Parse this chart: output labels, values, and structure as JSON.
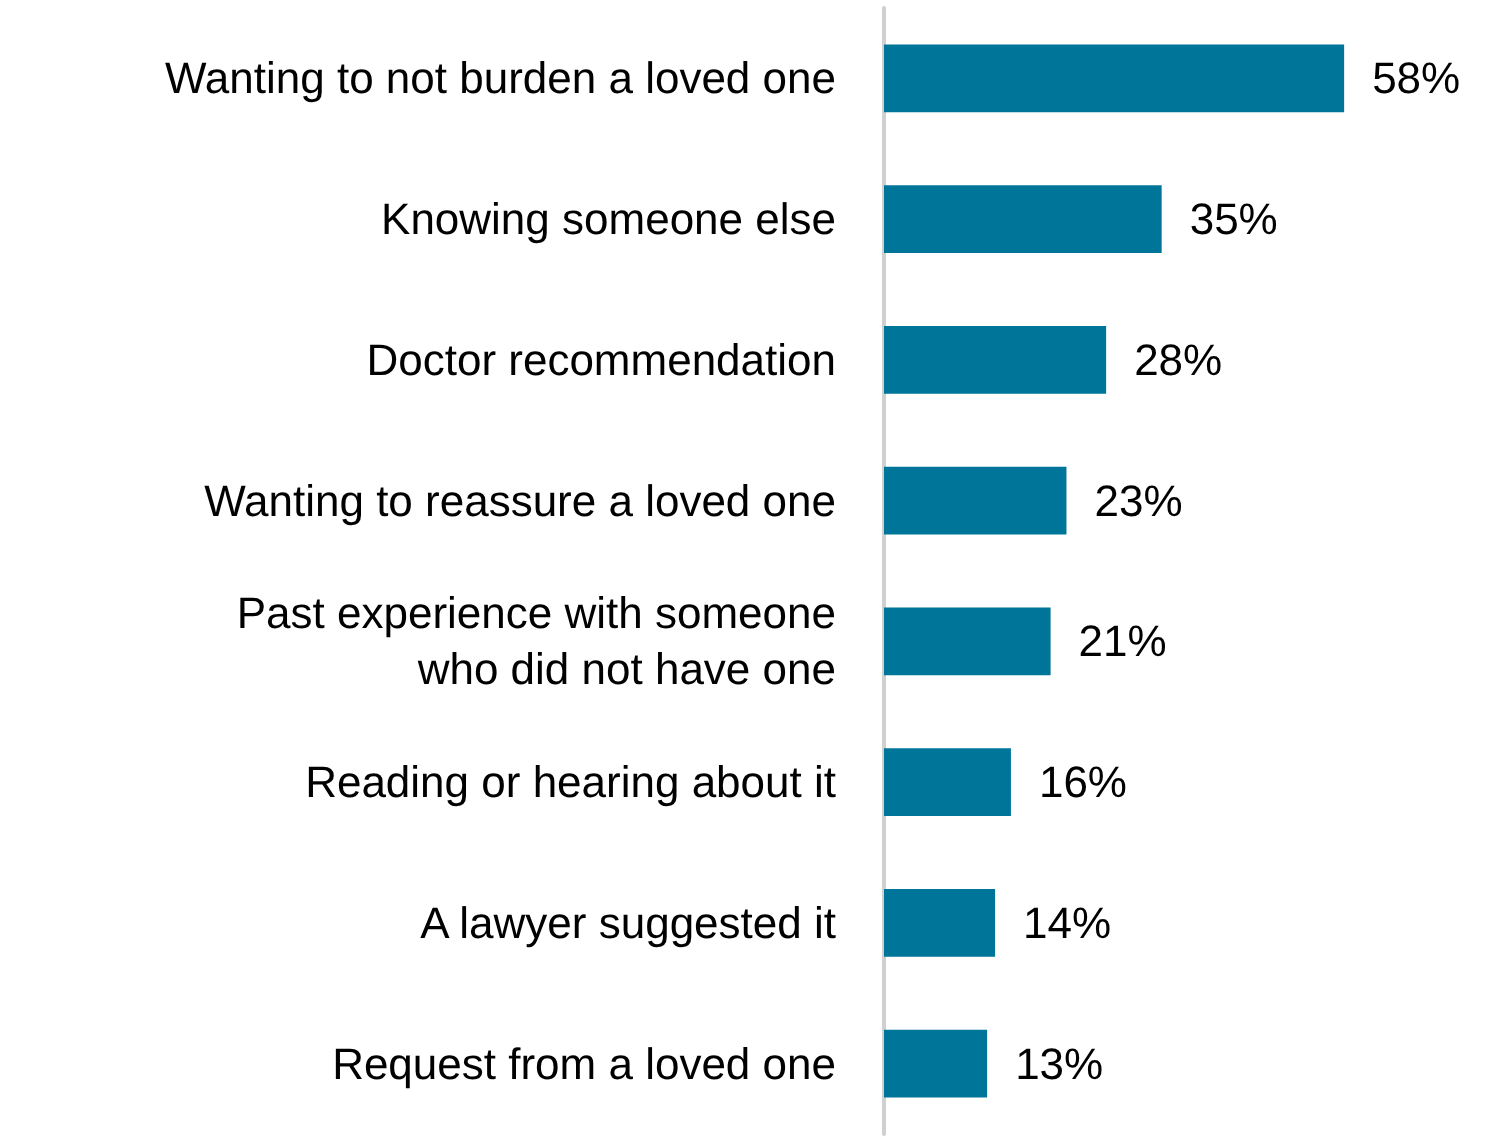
{
  "chart_data": {
    "type": "bar",
    "orientation": "horizontal",
    "categories": [
      "Wanting to not burden a loved one",
      "Knowing someone else",
      "Doctor recommendation",
      "Wanting to reassure a loved one",
      "Past experience with someone\nwho did not have one",
      "Reading or hearing about it",
      "A lawyer suggested it",
      "Request from a loved one"
    ],
    "values": [
      58,
      35,
      28,
      23,
      21,
      16,
      14,
      13
    ],
    "value_labels": [
      "58%",
      "35%",
      "28%",
      "23%",
      "21%",
      "16%",
      "14%",
      "13%"
    ],
    "color": "#00759a"
  }
}
